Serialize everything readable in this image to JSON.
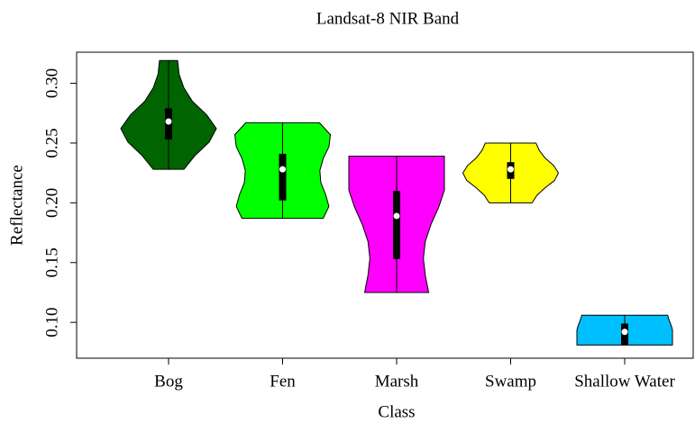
{
  "chart_data": {
    "type": "violin",
    "title": "Landsat-8 NIR Band",
    "x_label": "Class",
    "y_label": "Reflectance",
    "categories": [
      "Bog",
      "Fen",
      "Marsh",
      "Swamp",
      "Shallow Water"
    ],
    "series": [
      {
        "name": "Bog",
        "color": "#006400",
        "min": 0.228,
        "q1": 0.253,
        "median": 0.268,
        "q3": 0.279,
        "max": 0.319,
        "density": [
          0.32,
          0.55,
          0.85,
          1.0,
          0.8,
          0.5,
          0.32,
          0.22,
          0.19
        ]
      },
      {
        "name": "Fen",
        "color": "#00ff00",
        "min": 0.187,
        "q1": 0.202,
        "median": 0.228,
        "q3": 0.241,
        "max": 0.267,
        "density": [
          0.85,
          0.97,
          0.9,
          0.8,
          0.78,
          0.85,
          0.97,
          1.0,
          0.77
        ]
      },
      {
        "name": "Marsh",
        "color": "#ff00ff",
        "min": 0.125,
        "q1": 0.153,
        "median": 0.189,
        "q3": 0.21,
        "max": 0.239,
        "density": [
          0.67,
          0.6,
          0.56,
          0.6,
          0.72,
          0.88,
          1.0,
          1.0,
          1.0
        ]
      },
      {
        "name": "Swamp",
        "color": "#ffff00",
        "min": 0.2,
        "q1": 0.22,
        "median": 0.228,
        "q3": 0.234,
        "max": 0.25,
        "density": [
          0.45,
          0.55,
          0.72,
          0.92,
          1.0,
          0.9,
          0.72,
          0.6,
          0.53
        ]
      },
      {
        "name": "Shallow Water",
        "color": "#00bfff",
        "min": 0.081,
        "q1": 0.081,
        "median": 0.092,
        "q3": 0.099,
        "max": 0.106,
        "density": [
          1.0,
          1.0,
          1.0,
          1.0,
          1.0,
          0.98,
          0.95,
          0.92,
          0.9
        ]
      }
    ],
    "ylim": [
      0.07,
      0.326
    ],
    "yticks": [
      {
        "value": 0.1,
        "label": "0.10"
      },
      0.15,
      {
        "value": 0.2,
        "label": "0.20"
      },
      0.25,
      {
        "value": 0.3,
        "label": "0.30"
      }
    ]
  }
}
